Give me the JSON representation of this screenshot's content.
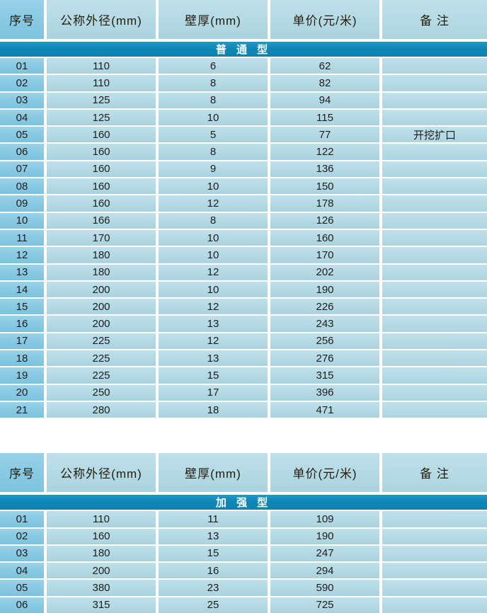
{
  "colors": {
    "header_bg": "#b89d66",
    "section_bg": "#0f87b6",
    "index_cell_bg": "#8acae3",
    "data_cell_bg": "#b4dae4",
    "section_text": "#ffffff",
    "body_text": "#1d1d1d"
  },
  "columns": [
    "序号",
    "公称外径(mm)",
    "壁厚(mm)",
    "单价(元/米)",
    "备 注"
  ],
  "tables": [
    {
      "section_title": "普 通 型",
      "rows": [
        {
          "no": "01",
          "od": "110",
          "wall": "6",
          "price": "62",
          "note": ""
        },
        {
          "no": "02",
          "od": "110",
          "wall": "8",
          "price": "82",
          "note": ""
        },
        {
          "no": "03",
          "od": "125",
          "wall": "8",
          "price": "94",
          "note": ""
        },
        {
          "no": "04",
          "od": "125",
          "wall": "10",
          "price": "115",
          "note": ""
        },
        {
          "no": "05",
          "od": "160",
          "wall": "5",
          "price": "77",
          "note": "开挖扩口"
        },
        {
          "no": "06",
          "od": "160",
          "wall": "8",
          "price": "122",
          "note": ""
        },
        {
          "no": "07",
          "od": "160",
          "wall": "9",
          "price": "136",
          "note": ""
        },
        {
          "no": "08",
          "od": "160",
          "wall": "10",
          "price": "150",
          "note": ""
        },
        {
          "no": "09",
          "od": "160",
          "wall": "12",
          "price": "178",
          "note": ""
        },
        {
          "no": "10",
          "od": "166",
          "wall": "8",
          "price": "126",
          "note": ""
        },
        {
          "no": "11",
          "od": "170",
          "wall": "10",
          "price": "160",
          "note": ""
        },
        {
          "no": "12",
          "od": "180",
          "wall": "10",
          "price": "170",
          "note": ""
        },
        {
          "no": "13",
          "od": "180",
          "wall": "12",
          "price": "202",
          "note": ""
        },
        {
          "no": "14",
          "od": "200",
          "wall": "10",
          "price": "190",
          "note": ""
        },
        {
          "no": "15",
          "od": "200",
          "wall": "12",
          "price": "226",
          "note": ""
        },
        {
          "no": "16",
          "od": "200",
          "wall": "13",
          "price": "243",
          "note": ""
        },
        {
          "no": "17",
          "od": "225",
          "wall": "12",
          "price": "256",
          "note": ""
        },
        {
          "no": "18",
          "od": "225",
          "wall": "13",
          "price": "276",
          "note": ""
        },
        {
          "no": "19",
          "od": "225",
          "wall": "15",
          "price": "315",
          "note": ""
        },
        {
          "no": "20",
          "od": "250",
          "wall": "17",
          "price": "396",
          "note": ""
        },
        {
          "no": "21",
          "od": "280",
          "wall": "18",
          "price": "471",
          "note": ""
        }
      ]
    },
    {
      "section_title": "加 强 型",
      "rows": [
        {
          "no": "01",
          "od": "110",
          "wall": "11",
          "price": "109",
          "note": ""
        },
        {
          "no": "02",
          "od": "160",
          "wall": "13",
          "price": "190",
          "note": ""
        },
        {
          "no": "03",
          "od": "180",
          "wall": "15",
          "price": "247",
          "note": ""
        },
        {
          "no": "04",
          "od": "200",
          "wall": "16",
          "price": "294",
          "note": ""
        },
        {
          "no": "05",
          "od": "380",
          "wall": "23",
          "price": "590",
          "note": ""
        },
        {
          "no": "06",
          "od": "315",
          "wall": "25",
          "price": "725",
          "note": ""
        }
      ]
    }
  ]
}
